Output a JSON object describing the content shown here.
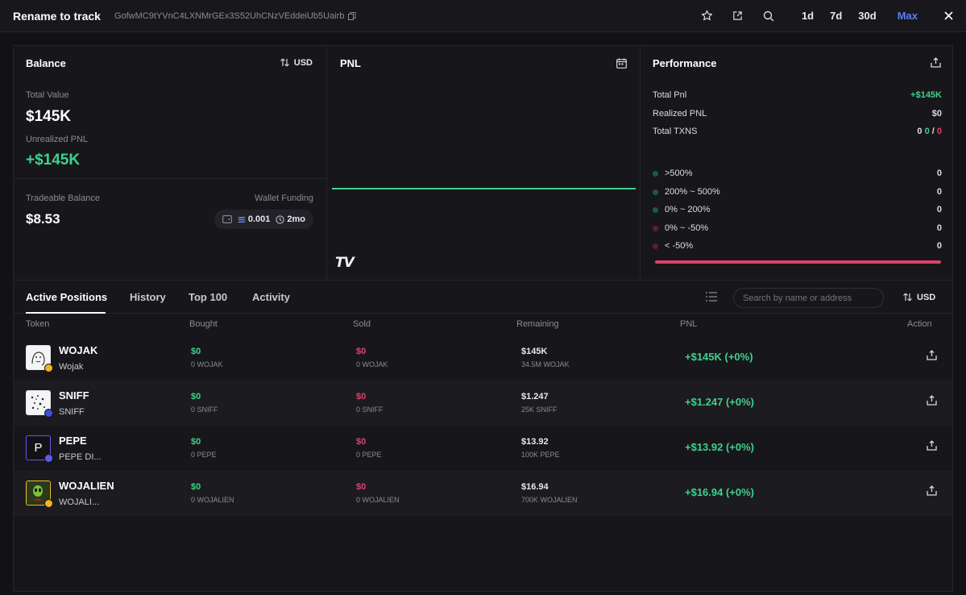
{
  "header": {
    "title": "Rename to track",
    "address": "GofwMC9tYVnC4LXNMrGEx3S52UhCNzVEddeiUb5Uairb",
    "timeframes": [
      "1d",
      "7d",
      "30d",
      "Max"
    ],
    "active_timeframe": "Max"
  },
  "balance": {
    "title": "Balance",
    "currency": "USD",
    "total_value_label": "Total Value",
    "total_value": "$145K",
    "unrealized_label": "Unrealized PNL",
    "unrealized": "+$145K",
    "tradeable_label": "Tradeable Balance",
    "tradeable": "$8.53",
    "wallet_funding_label": "Wallet Funding",
    "funding_amount": "0.001",
    "funding_age": "2mo"
  },
  "pnl_panel": {
    "title": "PNL",
    "logo_text": "TV"
  },
  "performance": {
    "title": "Performance",
    "total_pnl_label": "Total Pnl",
    "total_pnl": "+$145K",
    "realized_label": "Realized PNL",
    "realized": "$0",
    "txns_label": "Total TXNS",
    "txns_total": "0",
    "txns_buys": "0",
    "txns_sep": "/",
    "txns_sells": "0",
    "buckets": [
      {
        "label": ">500%",
        "value": "0",
        "color": "#1f5a3e"
      },
      {
        "label": "200% ~ 500%",
        "value": "0",
        "color": "#1f5a3e"
      },
      {
        "label": "0% ~ 200%",
        "value": "0",
        "color": "#1f5a3e"
      },
      {
        "label": "0% ~ -50%",
        "value": "0",
        "color": "#5a1f33"
      },
      {
        "label": "< -50%",
        "value": "0",
        "color": "#5a1f33"
      }
    ]
  },
  "tabs": {
    "items": [
      "Active Positions",
      "History",
      "Top 100",
      "Activity"
    ],
    "active": "Active Positions",
    "search_placeholder": "Search by name or address",
    "currency": "USD"
  },
  "columns": [
    "Token",
    "Bought",
    "Sold",
    "Remaining",
    "PNL",
    "Action"
  ],
  "positions": [
    {
      "symbol": "WOJAK",
      "name": "Wojak",
      "bought": "$0",
      "bought_qty": "0 WOJAK",
      "sold": "$0",
      "sold_qty": "0 WOJAK",
      "remaining": "$145K",
      "remaining_qty": "34.5M WOJAK",
      "pnl": "+$145K (+0%)",
      "badge_color": "#f0b429"
    },
    {
      "symbol": "SNIFF",
      "name": "SNIFF",
      "bought": "$0",
      "bought_qty": "0 SNIFF",
      "sold": "$0",
      "sold_qty": "0 SNIFF",
      "remaining": "$1.247",
      "remaining_qty": "25K SNIFF",
      "pnl": "+$1.247 (+0%)",
      "badge_color": "#3b4fd8"
    },
    {
      "symbol": "PEPE",
      "name": "PEPE DI...",
      "bought": "$0",
      "bought_qty": "0 PEPE",
      "sold": "$0",
      "sold_qty": "0 PEPE",
      "remaining": "$13.92",
      "remaining_qty": "100K PEPE",
      "pnl": "+$13.92 (+0%)",
      "badge_color": "#5b5bf0",
      "initial": "P"
    },
    {
      "symbol": "WOJALIEN",
      "name": "WOJALI...",
      "bought": "$0",
      "bought_qty": "0 WOJALIEN",
      "sold": "$0",
      "sold_qty": "0 WOJALIEN",
      "remaining": "$16.94",
      "remaining_qty": "700K WOJALIEN",
      "pnl": "+$16.94 (+0%)",
      "badge_color": "#f0b429"
    }
  ]
}
